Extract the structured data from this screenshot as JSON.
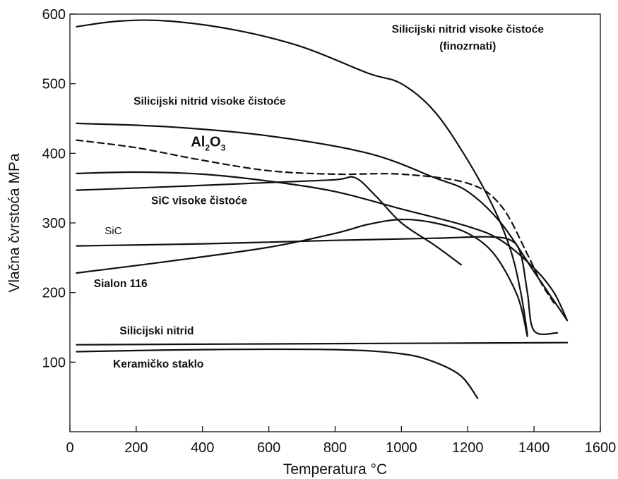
{
  "chart_data": {
    "type": "line",
    "xlabel": "Temperatura °C",
    "ylabel": "Vlačna čvrstoća MPa",
    "xlim": [
      0,
      1600
    ],
    "ylim": [
      0,
      600
    ],
    "xticks": [
      0,
      200,
      400,
      600,
      800,
      1000,
      1200,
      1400,
      1600
    ],
    "yticks": [
      100,
      200,
      300,
      400,
      500,
      600
    ],
    "grid": false,
    "series": [
      {
        "name": "Silicijski nitrid visoke čistoće (finozrnati)",
        "style": "solid",
        "points": [
          [
            20,
            582
          ],
          [
            150,
            590
          ],
          [
            300,
            590
          ],
          [
            500,
            577
          ],
          [
            700,
            553
          ],
          [
            900,
            515
          ],
          [
            1000,
            500
          ],
          [
            1100,
            460
          ],
          [
            1200,
            390
          ],
          [
            1280,
            320
          ],
          [
            1330,
            260
          ],
          [
            1360,
            200
          ],
          [
            1380,
            140
          ]
        ]
      },
      {
        "name": "Silicijski nitrid visoke čistoće",
        "style": "solid",
        "points": [
          [
            20,
            443
          ],
          [
            300,
            438
          ],
          [
            600,
            425
          ],
          [
            900,
            400
          ],
          [
            1100,
            365
          ],
          [
            1200,
            345
          ],
          [
            1300,
            300
          ],
          [
            1400,
            230
          ],
          [
            1450,
            195
          ],
          [
            1500,
            160
          ]
        ]
      },
      {
        "name": "Al₂O₃",
        "style": "dashed",
        "points": [
          [
            20,
            419
          ],
          [
            200,
            408
          ],
          [
            400,
            390
          ],
          [
            600,
            375
          ],
          [
            800,
            370
          ],
          [
            1000,
            370
          ],
          [
            1200,
            357
          ],
          [
            1300,
            325
          ],
          [
            1380,
            255
          ],
          [
            1420,
            215
          ],
          [
            1460,
            185
          ]
        ]
      },
      {
        "name": "SiC visoke čistoće",
        "style": "solid",
        "points": [
          [
            20,
            371
          ],
          [
            200,
            373
          ],
          [
            400,
            370
          ],
          [
            600,
            360
          ],
          [
            800,
            345
          ],
          [
            1000,
            320
          ],
          [
            1200,
            295
          ],
          [
            1300,
            275
          ],
          [
            1400,
            235
          ],
          [
            1460,
            200
          ],
          [
            1500,
            160
          ]
        ]
      },
      {
        "name": "",
        "style": "solid",
        "points": [
          [
            20,
            347
          ],
          [
            300,
            352
          ],
          [
            600,
            358
          ],
          [
            800,
            362
          ],
          [
            860,
            365
          ],
          [
            920,
            340
          ],
          [
            1000,
            300
          ],
          [
            1100,
            268
          ],
          [
            1180,
            240
          ]
        ]
      },
      {
        "name": "SiC",
        "style": "solid",
        "points": [
          [
            20,
            267
          ],
          [
            400,
            270
          ],
          [
            800,
            275
          ],
          [
            1100,
            278
          ],
          [
            1260,
            280
          ],
          [
            1330,
            275
          ],
          [
            1360,
            255
          ],
          [
            1380,
            200
          ],
          [
            1400,
            145
          ],
          [
            1470,
            142
          ]
        ]
      },
      {
        "name": "Sialon 116",
        "style": "solid",
        "points": [
          [
            20,
            228
          ],
          [
            300,
            245
          ],
          [
            600,
            265
          ],
          [
            800,
            285
          ],
          [
            900,
            298
          ],
          [
            1000,
            305
          ],
          [
            1100,
            300
          ],
          [
            1200,
            285
          ],
          [
            1280,
            255
          ],
          [
            1350,
            195
          ],
          [
            1380,
            137
          ]
        ]
      },
      {
        "name": "Silicijski nitrid",
        "style": "solid",
        "points": [
          [
            20,
            125
          ],
          [
            500,
            126
          ],
          [
            1000,
            127
          ],
          [
            1500,
            128
          ]
        ]
      },
      {
        "name": "Keramičko staklo",
        "style": "solid",
        "points": [
          [
            20,
            115
          ],
          [
            400,
            118
          ],
          [
            800,
            118
          ],
          [
            1000,
            112
          ],
          [
            1100,
            100
          ],
          [
            1180,
            80
          ],
          [
            1230,
            48
          ]
        ]
      }
    ],
    "annotations": [
      {
        "text": "Silicijski nitrid visoke čistoće",
        "x": 1200,
        "y": 573,
        "anchor": "middle",
        "cls": "ann"
      },
      {
        "text": "(finozrnati)",
        "x": 1200,
        "y": 549,
        "anchor": "middle",
        "cls": "ann"
      },
      {
        "text": "Silicijski nitrid visoke čistoće",
        "x": 192,
        "y": 470,
        "anchor": "start",
        "cls": "ann"
      },
      {
        "text": "SiC visoke čistoće",
        "x": 245,
        "y": 327,
        "anchor": "start",
        "cls": "ann"
      },
      {
        "text": "SiC",
        "x": 105,
        "y": 284,
        "anchor": "start",
        "cls": "ann-plain"
      },
      {
        "text": "Sialon 116",
        "x": 72,
        "y": 208,
        "anchor": "start",
        "cls": "ann"
      },
      {
        "text": "Silicijski nitrid",
        "x": 150,
        "y": 140,
        "anchor": "start",
        "cls": "ann"
      },
      {
        "text": "Keramičko staklo",
        "x": 130,
        "y": 92,
        "anchor": "start",
        "cls": "ann"
      }
    ],
    "al2o3_label": {
      "text": "Al",
      "sub": "2",
      "mid": "O",
      "sub2": "3",
      "x": 365,
      "y": 410
    }
  }
}
